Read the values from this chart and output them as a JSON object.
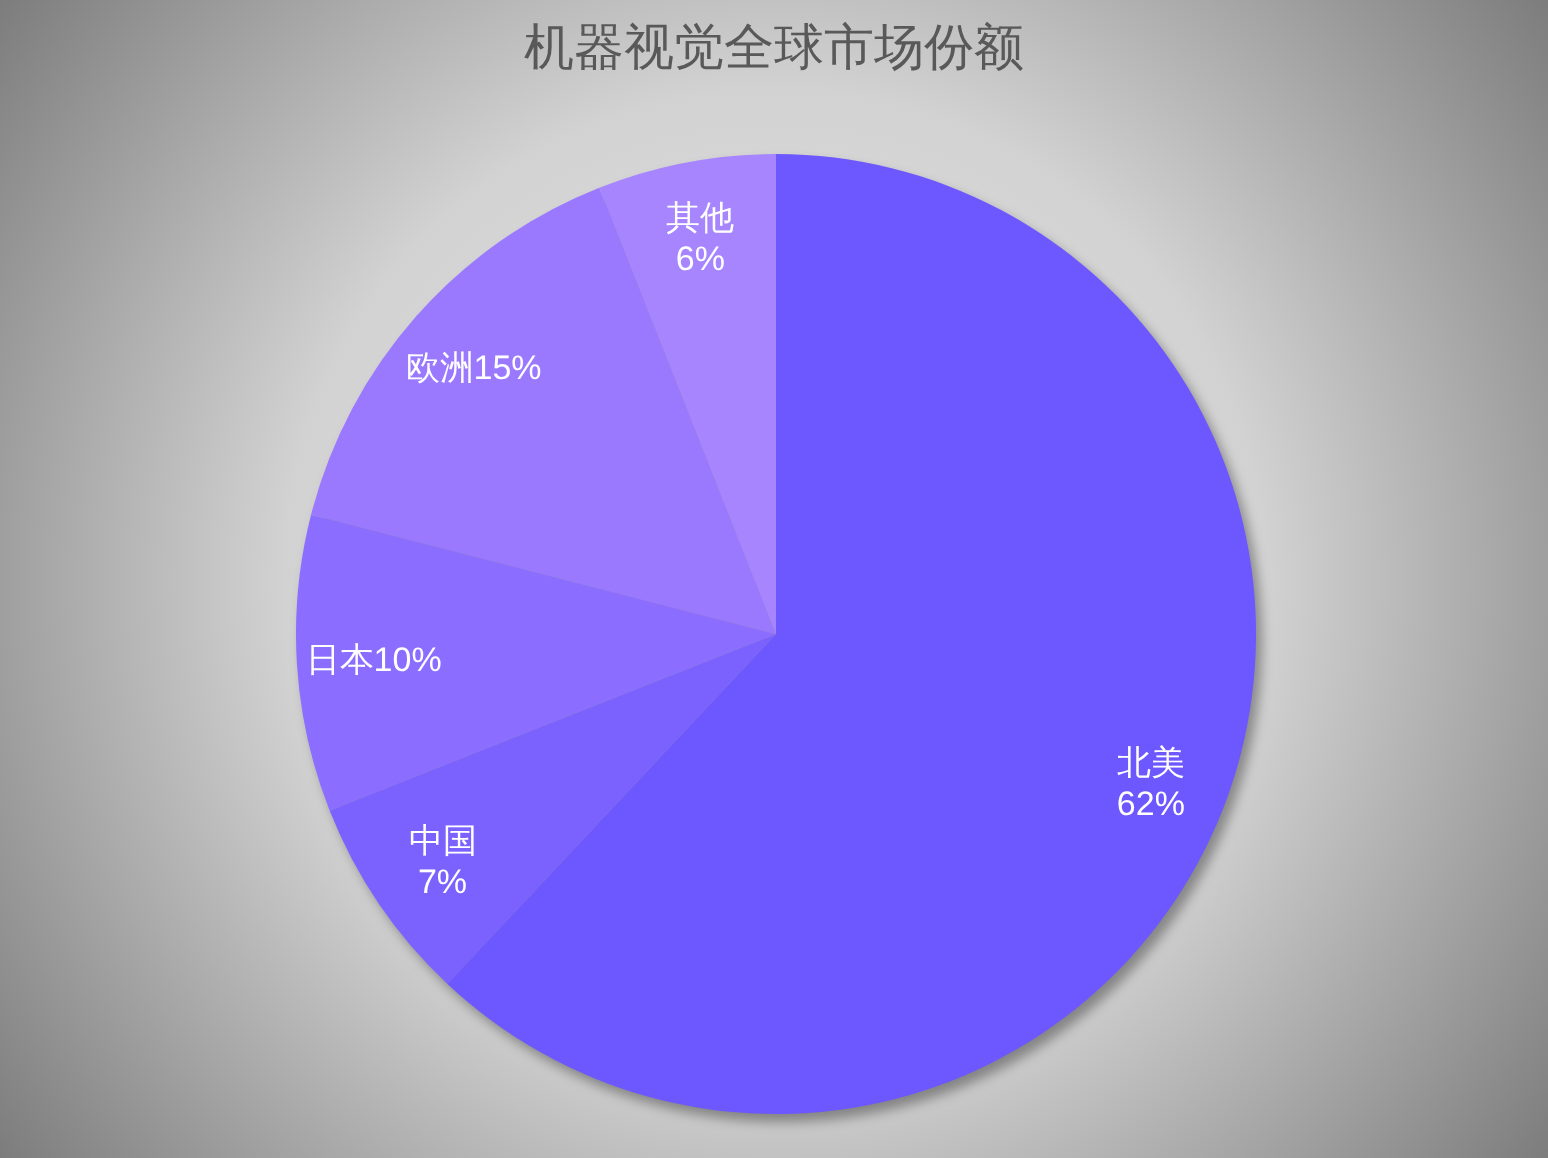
{
  "chart_data": {
    "type": "pie",
    "title": "机器视觉全球市场份额",
    "categories": [
      "北美",
      "中国",
      "日本",
      "欧洲",
      "其他"
    ],
    "values": [
      62,
      7,
      10,
      15,
      6
    ],
    "colors": [
      "#6d57ff",
      "#7b62ff",
      "#8b6dff",
      "#9a79ff",
      "#a785ff"
    ],
    "value_labels": [
      "62%",
      "7%",
      "10%",
      "15%",
      "6%"
    ]
  }
}
